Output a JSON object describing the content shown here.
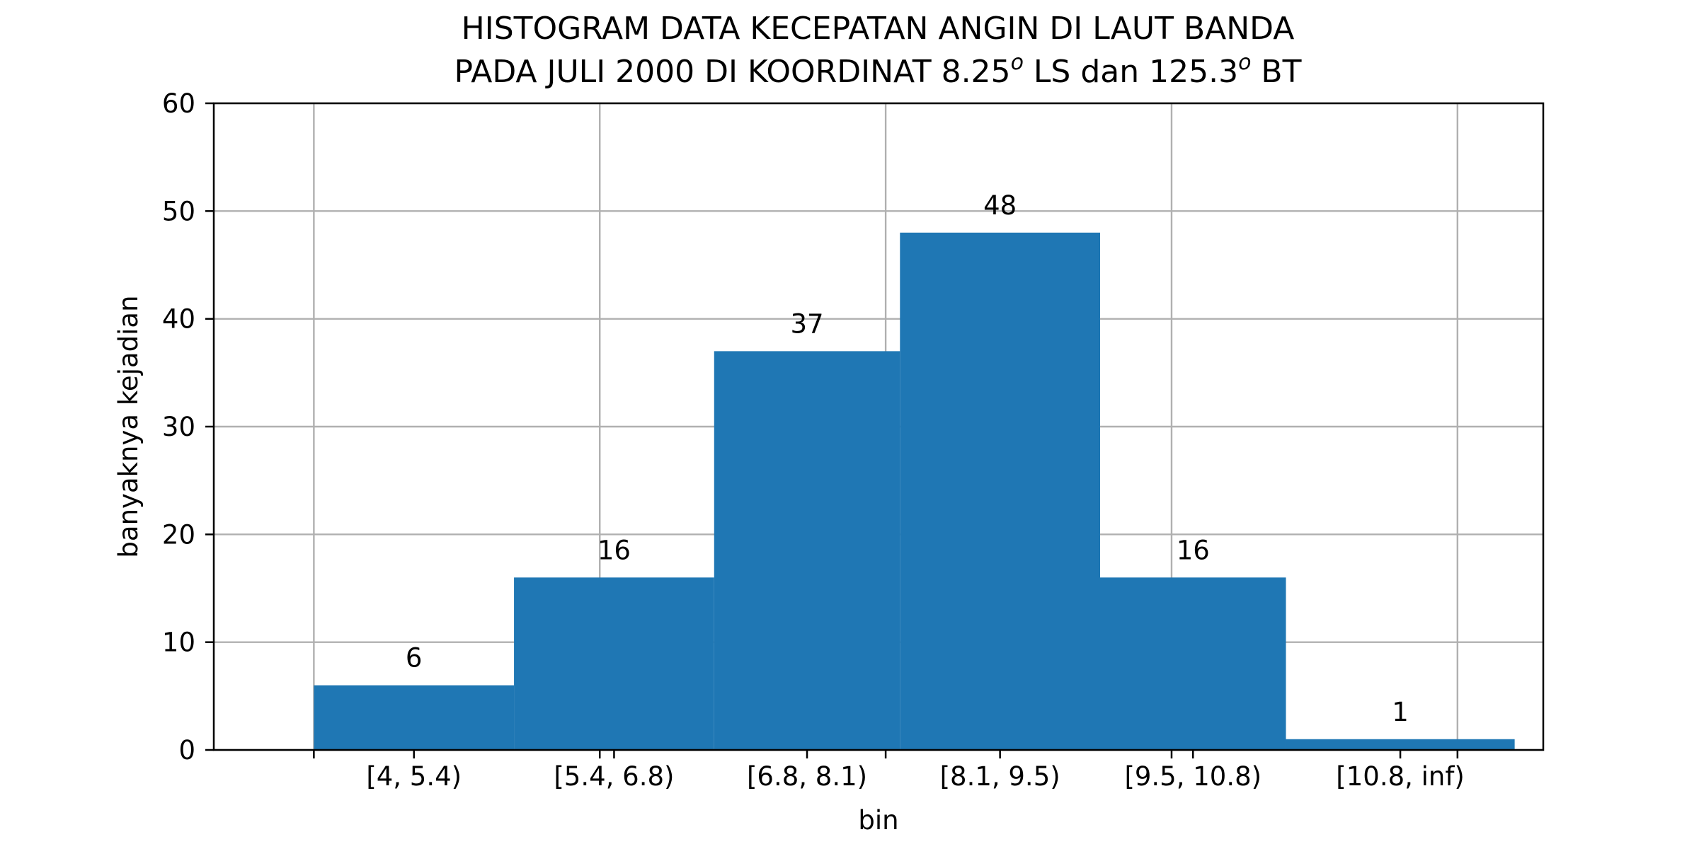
{
  "chart_data": {
    "type": "bar",
    "title_lines": [
      "HISTOGRAM DATA KECEPATAN ANGIN DI LAUT BANDA",
      "PADA JULI 2000 DI KOORDINAT 8.25",
      "o",
      " LS dan 125.3",
      "o",
      " BT"
    ],
    "xlabel": "bin",
    "ylabel": "banyaknya kejadian",
    "categories": [
      "[4, 5.4)",
      "[5.4, 6.8)",
      "[6.8, 8.1)",
      "[8.1, 9.5)",
      "[9.5, 10.8)",
      "[10.8, inf)"
    ],
    "values": [
      6,
      16,
      37,
      48,
      16,
      1
    ],
    "data_labels": [
      "6",
      "16",
      "37",
      "48",
      "16",
      "1"
    ],
    "bin_edges": [
      4,
      5.4,
      6.8,
      8.1,
      9.5,
      10.8,
      12.4
    ],
    "x_grid_ticks": [
      4,
      6,
      8,
      10,
      12
    ],
    "xlim": [
      3.3,
      12.6
    ],
    "ylim": [
      0,
      60
    ],
    "yticks": [
      0,
      10,
      20,
      30,
      40,
      50,
      60
    ],
    "grid": true,
    "bar_color": "#1f77b4"
  }
}
